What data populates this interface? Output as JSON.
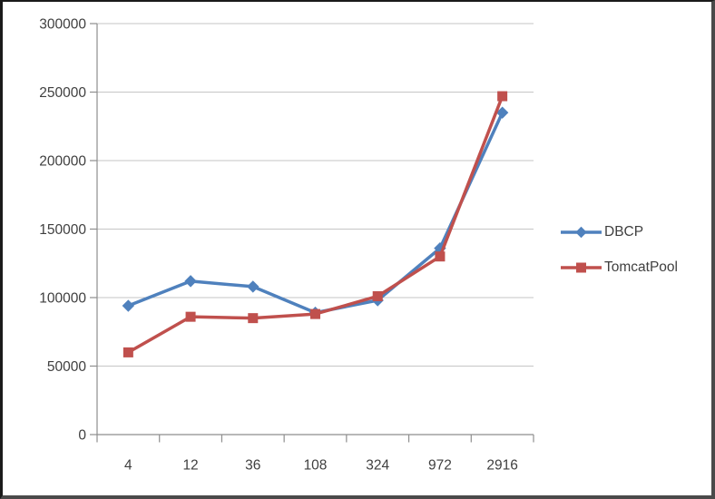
{
  "chart": {
    "background": "#FFFFFF",
    "frame_border_color": "#1A1A1A",
    "grid_color": "#C6C6C6",
    "axis_color": "#8E8E8E",
    "text_color": "#3F3F3F"
  },
  "chart_data": {
    "type": "line",
    "title": "",
    "xlabel": "",
    "ylabel": "",
    "categories": [
      "4",
      "12",
      "36",
      "108",
      "324",
      "972",
      "2916"
    ],
    "series": [
      {
        "name": "DBCP",
        "color": "#4F81BD",
        "marker": "diamond",
        "values": [
          94000,
          112000,
          108000,
          89000,
          98000,
          136000,
          235000
        ]
      },
      {
        "name": "TomcatPool",
        "color": "#C0504D",
        "marker": "square",
        "values": [
          60000,
          86000,
          85000,
          88000,
          101000,
          130000,
          247000
        ]
      }
    ],
    "ylim": [
      0,
      300000
    ],
    "ytick_interval": 50000,
    "ytick_labels": [
      "0",
      "50000",
      "100000",
      "150000",
      "200000",
      "250000",
      "300000"
    ],
    "grid": "horizontal-only",
    "legend_position": "right"
  }
}
